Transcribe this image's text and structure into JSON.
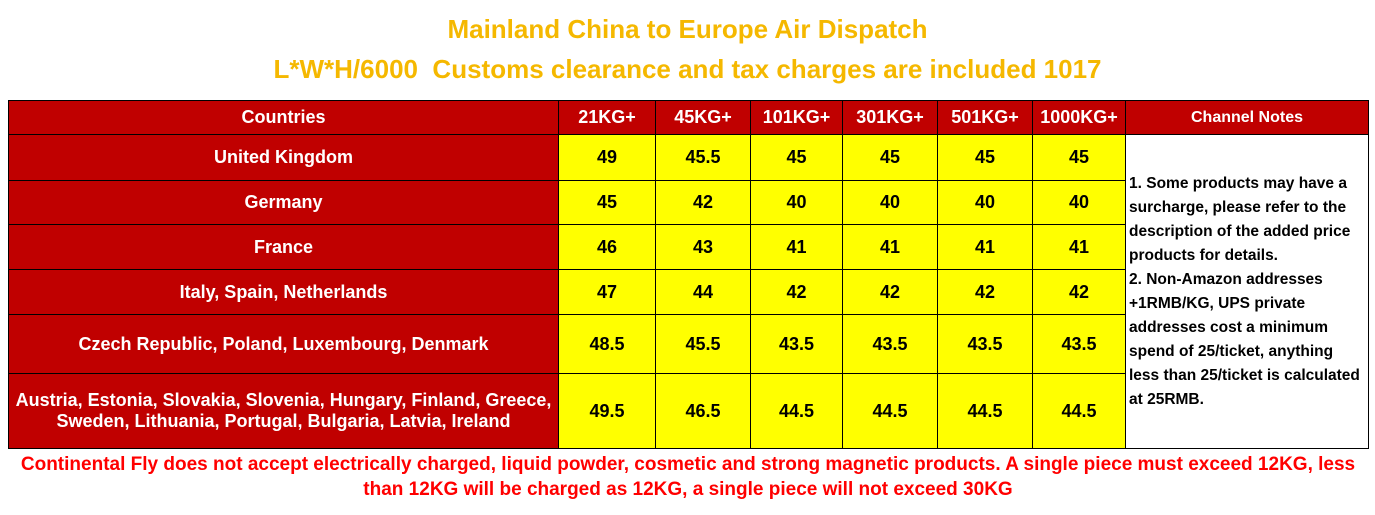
{
  "title": [
    "Mainland China to Europe Air Dispatch",
    "L*W*H/6000  Customs clearance and tax charges are included 1017"
  ],
  "table": {
    "header": [
      "Countries",
      "21KG+",
      "45KG+",
      "101KG+",
      "301KG+",
      "501KG+",
      "1000KG+",
      "Channel Notes"
    ],
    "rows": [
      [
        "United Kingdom",
        49,
        45.5,
        45,
        45,
        45,
        45
      ],
      [
        "Germany",
        45,
        42,
        40,
        40,
        40,
        40
      ],
      [
        "France",
        46,
        43,
        41,
        41,
        41,
        41
      ],
      [
        "Italy, Spain, Netherlands",
        47,
        44,
        42,
        42,
        42,
        42
      ],
      [
        "Czech Republic, Poland, Luxembourg, Denmark",
        48.5,
        45.5,
        43.5,
        43.5,
        43.5,
        43.5
      ],
      [
        "Austria, Estonia, Slovakia, Slovenia, Hungary, Finland, Greece, Sweden, Lithuania, Portugal, Bulgaria, Latvia, Ireland",
        49.5,
        46.5,
        44.5,
        44.5,
        44.5,
        44.5
      ]
    ],
    "notes": [
      "1. Some products may have a surcharge, please refer to the description of the added price products for details.",
      "2. Non-Amazon addresses +1RMB/KG, UPS private addresses cost a minimum spend of 25/ticket, anything less than 25/ticket is calculated at 25RMB."
    ]
  },
  "footer": "Continental Fly does not accept electrically charged, liquid powder, cosmetic and strong magnetic products. A single piece must exceed 12KG, less than 12KG will be charged as 12KG, a single piece will not exceed 30KG"
}
